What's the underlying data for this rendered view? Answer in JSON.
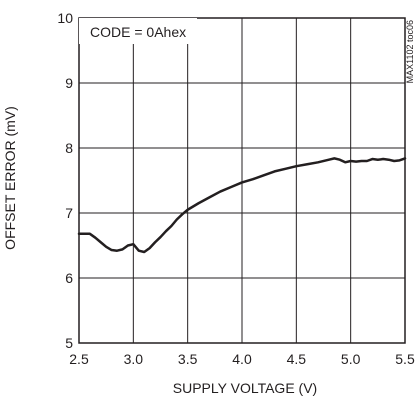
{
  "chart_data": {
    "type": "line",
    "xlabel": "SUPPLY VOLTAGE (V)",
    "ylabel": "OFFSET ERROR (mV)",
    "xlim": [
      2.5,
      5.5
    ],
    "ylim": [
      5,
      10
    ],
    "x_ticks": [
      2.5,
      3.0,
      3.5,
      4.0,
      4.5,
      5.0,
      5.5
    ],
    "x_tick_labels": [
      "2.5",
      "3.0",
      "3.5",
      "4.0",
      "4.5",
      "5.0",
      "5.5"
    ],
    "y_ticks": [
      5,
      6,
      7,
      8,
      9,
      10
    ],
    "y_tick_labels": [
      "5",
      "6",
      "7",
      "8",
      "9",
      "10"
    ],
    "grid": true,
    "annotation": "CODE = 0Ahex",
    "side_note": "MAX1102 toc06",
    "series": [
      {
        "color": "#231f20",
        "x": [
          2.5,
          2.6,
          2.65,
          2.7,
          2.75,
          2.8,
          2.85,
          2.9,
          2.95,
          3.0,
          3.05,
          3.1,
          3.15,
          3.2,
          3.25,
          3.3,
          3.35,
          3.4,
          3.45,
          3.5,
          3.55,
          3.6,
          3.7,
          3.8,
          3.9,
          4.0,
          4.1,
          4.2,
          4.3,
          4.4,
          4.5,
          4.6,
          4.7,
          4.8,
          4.85,
          4.9,
          4.95,
          5.0,
          5.05,
          5.1,
          5.15,
          5.2,
          5.25,
          5.3,
          5.35,
          5.4,
          5.45,
          5.5
        ],
        "y": [
          6.68,
          6.68,
          6.62,
          6.55,
          6.48,
          6.43,
          6.42,
          6.44,
          6.5,
          6.52,
          6.42,
          6.4,
          6.46,
          6.55,
          6.63,
          6.72,
          6.8,
          6.9,
          6.98,
          7.05,
          7.1,
          7.15,
          7.24,
          7.33,
          7.4,
          7.47,
          7.52,
          7.58,
          7.64,
          7.68,
          7.72,
          7.75,
          7.78,
          7.82,
          7.84,
          7.82,
          7.78,
          7.8,
          7.79,
          7.8,
          7.8,
          7.83,
          7.82,
          7.83,
          7.82,
          7.8,
          7.81,
          7.84
        ]
      }
    ]
  }
}
